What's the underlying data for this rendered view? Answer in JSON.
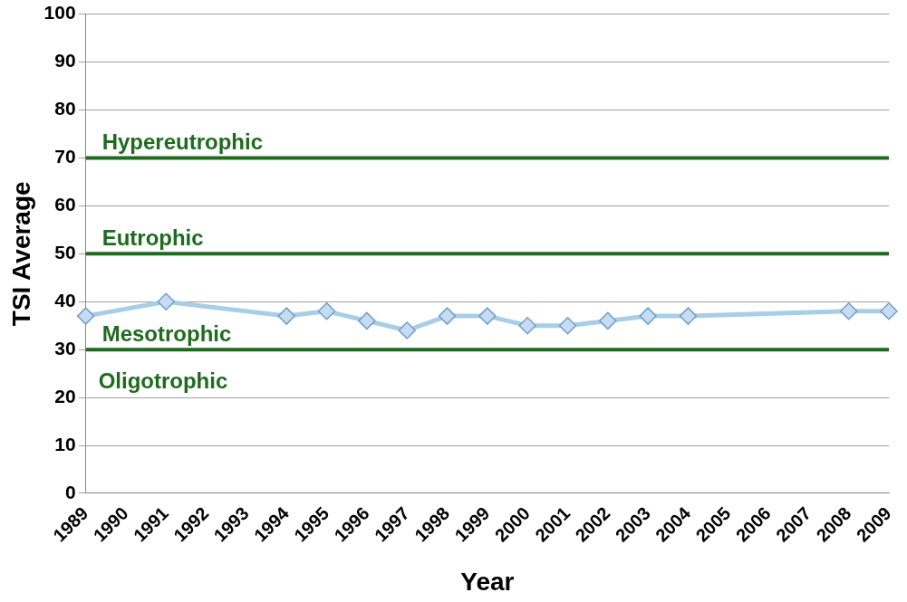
{
  "chart_data": {
    "type": "line",
    "xlabel": "Year",
    "ylabel": "TSI Average",
    "categories": [
      "1989",
      "1990",
      "1991",
      "1992",
      "1993",
      "1994",
      "1995",
      "1996",
      "1997",
      "1998",
      "1999",
      "2000",
      "2001",
      "2002",
      "2003",
      "2004",
      "2005",
      "2006",
      "2007",
      "2008",
      "2009"
    ],
    "series": [
      {
        "color": "#a9cde6",
        "values": [
          37,
          null,
          40,
          null,
          null,
          37,
          38,
          36,
          34,
          37,
          37,
          35,
          35,
          36,
          37,
          37,
          null,
          null,
          null,
          38,
          38
        ]
      },
      {
        "name": "Hypereutrophic",
        "color": "#1e6b1e",
        "marker": "none",
        "values": [
          70,
          70,
          70,
          70,
          70,
          70,
          70,
          70,
          70,
          70,
          70,
          70,
          70,
          70,
          70,
          70,
          70,
          70,
          70,
          70,
          70
        ]
      },
      {
        "name": "Eutrophic",
        "color": "#1e6b1e",
        "marker": "none",
        "values": [
          50,
          50,
          50,
          50,
          50,
          50,
          50,
          50,
          50,
          50,
          50,
          50,
          50,
          50,
          50,
          50,
          50,
          50,
          50,
          50,
          50
        ]
      },
      {
        "name": "Mesotrophic",
        "color": "#1e6b1e",
        "marker": "none",
        "values": [
          30,
          30,
          30,
          30,
          30,
          30,
          30,
          30,
          30,
          30,
          30,
          30,
          30,
          30,
          30,
          30,
          30,
          30,
          30,
          30,
          30
        ]
      }
    ],
    "ylim": [
      0,
      100
    ],
    "yticks": [
      0,
      10,
      20,
      30,
      40,
      50,
      60,
      70,
      80,
      90,
      100
    ],
    "grid": "y",
    "legend": false,
    "marker": "diamond",
    "line_style": "solid",
    "annotations": [
      "Oligotrophic"
    ]
  }
}
